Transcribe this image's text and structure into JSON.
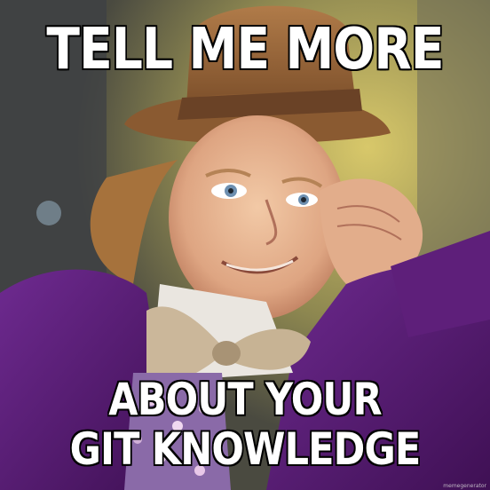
{
  "meme": {
    "top_text": "TELL ME MORE",
    "bottom_text_line1": "ABOUT YOUR",
    "bottom_text_line2": "GIT KNOWLEDGE",
    "watermark": "memegenerator"
  },
  "colors": {
    "caption_fill": "#ffffff",
    "caption_stroke": "#000000",
    "jacket": "#5b1d78",
    "hat": "#9b6a3e",
    "background_yellow": "#c8b54a"
  }
}
